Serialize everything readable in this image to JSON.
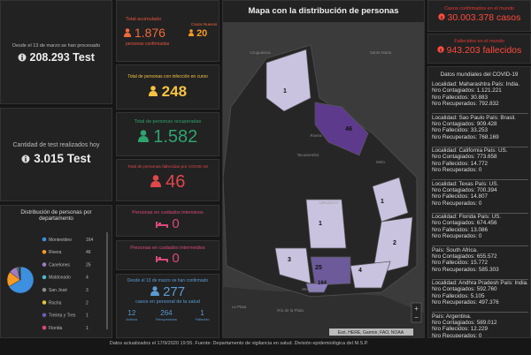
{
  "left": {
    "processed": {
      "label": "Desde el 13 de marzo se han procesado",
      "value": "208.293 Test"
    },
    "today": {
      "label": "Cantidad de test realizados hoy",
      "value": "3.015 Test"
    },
    "distribution": {
      "title": "Distribución de personas por departamento",
      "type": "pie",
      "categories": [
        "Montevideo",
        "Rivera",
        "Canelones",
        "Maldonado",
        "San José",
        "Rocha",
        "Treinta y Tres",
        "Florida"
      ],
      "values": [
        164,
        46,
        25,
        4,
        3,
        2,
        1,
        1
      ],
      "colors": [
        "#3d8fe0",
        "#f59a23",
        "#a07cc5",
        "#4fb8c9",
        "#8a8a8a",
        "#e0c341",
        "#6b5fb5",
        "#d94a78"
      ]
    }
  },
  "middle": {
    "total": {
      "label": "Total acumulado",
      "value": "1.876",
      "sub": "personas confirmadas",
      "new_label": "Casos Nuevos",
      "new_value": "20"
    },
    "active": {
      "label": "Total de personas con infección en curso",
      "value": "248"
    },
    "recovered": {
      "label": "Total de personas recuperadas",
      "value": "1.582"
    },
    "deceased": {
      "label": "Total de personas fallecidas por COVID-19",
      "value": "46"
    },
    "icu": {
      "label": "Personas en cuidados intensivos",
      "value": "0"
    },
    "intermediate": {
      "label": "Personas en cuidados intermedios",
      "value": "0"
    },
    "health": {
      "label": "Desde el 13 de marzo se han confirmado",
      "value": "277",
      "sub": "casos en personal de la salud",
      "stats": [
        {
          "value": "12",
          "label": "Activos"
        },
        {
          "value": "264",
          "label": "Recuperados"
        },
        {
          "value": "1",
          "label": "Fallecido"
        }
      ]
    }
  },
  "map": {
    "title": "Mapa con la distribución de personas",
    "counts": [
      1,
      46,
      1,
      1,
      2,
      3,
      25,
      164,
      4
    ],
    "places": [
      "Uruguaiana",
      "Santa Maria",
      "Rivera",
      "Tacuarembó",
      "Melo",
      "URUGUAY",
      "Montevideo",
      "La Plata",
      "Río de la Plata"
    ],
    "attribution": "Esri, HERE, Garmin, FAO, NOAA"
  },
  "right": {
    "cases": {
      "label": "Casos confirmados en el mundo",
      "value": "30.003.378 casos"
    },
    "deaths": {
      "label": "Fallecidos en el mundo",
      "value": "943.203 fallecidos"
    },
    "list_title": "Datos mundiales del COVID-19",
    "field_labels": {
      "locality": "Localidad:",
      "country": "País:",
      "infected": "Nro Contagiados:",
      "deceased": "Nro Fallecidos:",
      "recovered": "Nro Recuperados:"
    },
    "entries": [
      {
        "locality": "Maharashtra",
        "country": "India.",
        "infected": "1.121.221",
        "deceased": "30.883",
        "recovered": "792.832"
      },
      {
        "locality": "Sao Paulo",
        "country": "Brasil.",
        "infected": "909.428",
        "deceased": "33.253",
        "recovered": "768.169"
      },
      {
        "locality": "California",
        "country": "US.",
        "infected": "773.658",
        "deceased": "14.772",
        "recovered": "0"
      },
      {
        "locality": "Texas",
        "country": "US.",
        "infected": "700.394",
        "deceased": "14.807",
        "recovered": "0"
      },
      {
        "locality": "Florida",
        "country": "US.",
        "infected": "674.456",
        "deceased": "13.086",
        "recovered": "0"
      },
      {
        "locality": "",
        "country": "South Africa.",
        "infected": "655.572",
        "deceased": "15.772",
        "recovered": "585.303"
      },
      {
        "locality": "Andhra Pradesh",
        "country": "India.",
        "infected": "592.760",
        "deceased": "5.105",
        "recovered": "497.376"
      },
      {
        "locality": "",
        "country": "Argentina.",
        "infected": "589.012",
        "deceased": "12.229",
        "recovered": "0"
      }
    ]
  },
  "footer": "Datos actualizados el 17/9/2020 19:55. Fuente: Departamento de vigilancia en salud. División epidemiológica del M.S.P."
}
